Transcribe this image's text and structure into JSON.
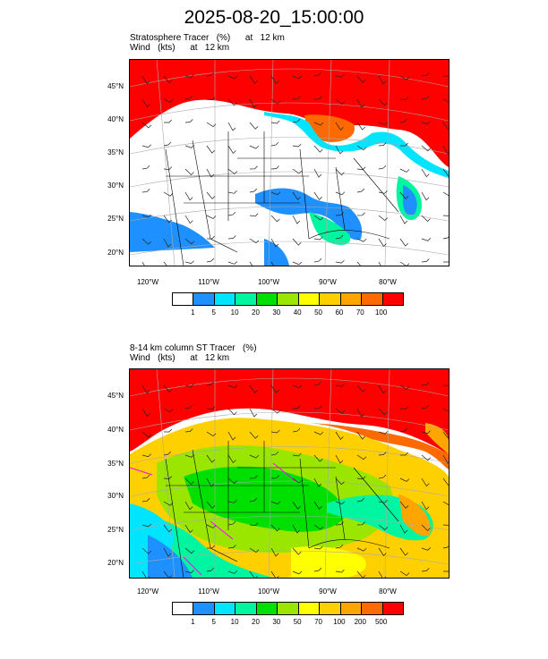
{
  "title": "2025-08-20_15:00:00",
  "panels": [
    {
      "name": "stratosphere",
      "line1": "Stratosphere Tracer   (%)      at   12 km",
      "line2": "Wind   (kts)      at   12 km",
      "levels": [
        "1",
        "5",
        "10",
        "20",
        "30",
        "40",
        "50",
        "60",
        "70",
        "100"
      ],
      "colors": [
        "#ffffff",
        "#1e90ff",
        "#00e5ff",
        "#00f5a0",
        "#00e000",
        "#9ae600",
        "#ffff00",
        "#ffd000",
        "#ffa500",
        "#ff6a00",
        "#ff0000"
      ]
    },
    {
      "name": "column",
      "line1": "8-14 km column ST Tracer   (%)",
      "line2": "Wind   (kts)      at   12 km",
      "levels": [
        "1",
        "5",
        "10",
        "20",
        "30",
        "50",
        "70",
        "100",
        "200",
        "500"
      ],
      "colors": [
        "#ffffff",
        "#1e90ff",
        "#00e5ff",
        "#00f5a0",
        "#00e000",
        "#9ae600",
        "#ffff00",
        "#ffd000",
        "#ffa500",
        "#ff6a00",
        "#ff0000"
      ]
    }
  ],
  "lat_labels": [
    "45°N",
    "40°N",
    "35°N",
    "30°N",
    "25°N",
    "20°N"
  ],
  "lon_labels": [
    "120°W",
    "110°W",
    "100°W",
    "90°W",
    "80°W"
  ]
}
